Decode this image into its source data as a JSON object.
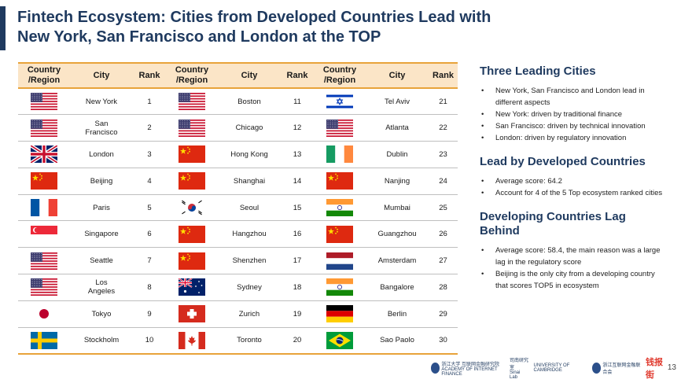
{
  "title": {
    "line1": "Fintech Ecosystem: Cities from Developed Countries Lead with",
    "line2": "New York, San Francisco and London at the TOP"
  },
  "table": {
    "headers": [
      "Country /Region",
      "City",
      "Rank",
      "Country /Region",
      "City",
      "Rank",
      "Country /Region",
      "City",
      "Rank"
    ],
    "header_lines": {
      "country_1": "Country",
      "country_2": "/Region"
    },
    "rows": [
      [
        {
          "flag": "us-flag",
          "city": "New York",
          "rank": "1"
        },
        {
          "flag": "us-flag",
          "city": "Boston",
          "rank": "11"
        },
        {
          "flag": "israel-flag",
          "city": "Tel Aviv",
          "rank": "21"
        }
      ],
      [
        {
          "flag": "us-flag",
          "city": "San Francisco",
          "rank": "2"
        },
        {
          "flag": "us-flag",
          "city": "Chicago",
          "rank": "12"
        },
        {
          "flag": "us-flag",
          "city": "Atlanta",
          "rank": "22"
        }
      ],
      [
        {
          "flag": "uk-flag",
          "city": "London",
          "rank": "3"
        },
        {
          "flag": "china-flag",
          "city": "Hong Kong",
          "rank": "13"
        },
        {
          "flag": "ireland-flag",
          "city": "Dublin",
          "rank": "23"
        }
      ],
      [
        {
          "flag": "china-flag",
          "city": "Beijing",
          "rank": "4"
        },
        {
          "flag": "china-flag",
          "city": "Shanghai",
          "rank": "14"
        },
        {
          "flag": "china-flag",
          "city": "Nanjing",
          "rank": "24"
        }
      ],
      [
        {
          "flag": "france-flag",
          "city": "Paris",
          "rank": "5"
        },
        {
          "flag": "korea-flag",
          "city": "Seoul",
          "rank": "15"
        },
        {
          "flag": "india-flag",
          "city": "Mumbai",
          "rank": "25"
        }
      ],
      [
        {
          "flag": "singapore-flag",
          "city": "Singapore",
          "rank": "6"
        },
        {
          "flag": "china-flag",
          "city": "Hangzhou",
          "rank": "16"
        },
        {
          "flag": "china-flag",
          "city": "Guangzhou",
          "rank": "26"
        }
      ],
      [
        {
          "flag": "us-flag",
          "city": "Seattle",
          "rank": "7"
        },
        {
          "flag": "china-flag",
          "city": "Shenzhen",
          "rank": "17"
        },
        {
          "flag": "netherlands-flag",
          "city": "Amsterdam",
          "rank": "27"
        }
      ],
      [
        {
          "flag": "us-flag",
          "city": "Los Angeles",
          "rank": "8"
        },
        {
          "flag": "australia-flag",
          "city": "Sydney",
          "rank": "18"
        },
        {
          "flag": "india-flag",
          "city": "Bangalore",
          "rank": "28"
        }
      ],
      [
        {
          "flag": "japan-flag",
          "city": "Tokyo",
          "rank": "9"
        },
        {
          "flag": "switzerland-flag",
          "city": "Zurich",
          "rank": "19"
        },
        {
          "flag": "germany-flag",
          "city": "Berlin",
          "rank": "29"
        }
      ],
      [
        {
          "flag": "sweden-flag",
          "city": "Stockholm",
          "rank": "10"
        },
        {
          "flag": "canada-flag",
          "city": "Toronto",
          "rank": "20"
        },
        {
          "flag": "brazil-flag",
          "city": "Sao Paolo",
          "rank": "30"
        }
      ]
    ]
  },
  "sections": [
    {
      "title": "Three Leading Cities",
      "bullets": [
        "New York, San Francisco and London lead in different aspects",
        "New York: driven by traditional finance",
        "San Francisco: driven by technical innovation",
        "London: driven by regulatory innovation"
      ]
    },
    {
      "title": "Lead by Developed Countries",
      "bullets": [
        "Average score: 64.2",
        "Account for 4 of the 5 Top ecosystem ranked cities"
      ]
    },
    {
      "title": "Developing Countries Lag Behind",
      "bullets": [
        "Average score: 58.4, the main reason was a large lag in the regulatory score",
        "Beijing is the only city from a developing country that scores TOP5 in ecosystem"
      ]
    }
  ],
  "footer": {
    "logo1": "浙江大学 互联网金融研究院",
    "logo1_sub": "ACADEMY OF INTERNET FINANCE",
    "logo2": "司南研究室",
    "logo2_sub": "Sinai Lab",
    "logo3": "UNIVERSITY OF CAMBRIDGE",
    "logo4": "浙江互联网金融联合会",
    "logo5": "钱报街",
    "page": "13"
  },
  "colors": {
    "accent": "#1f3a5f",
    "table_header_bg": "#fbe5c7",
    "table_rule": "#e8a33a"
  }
}
